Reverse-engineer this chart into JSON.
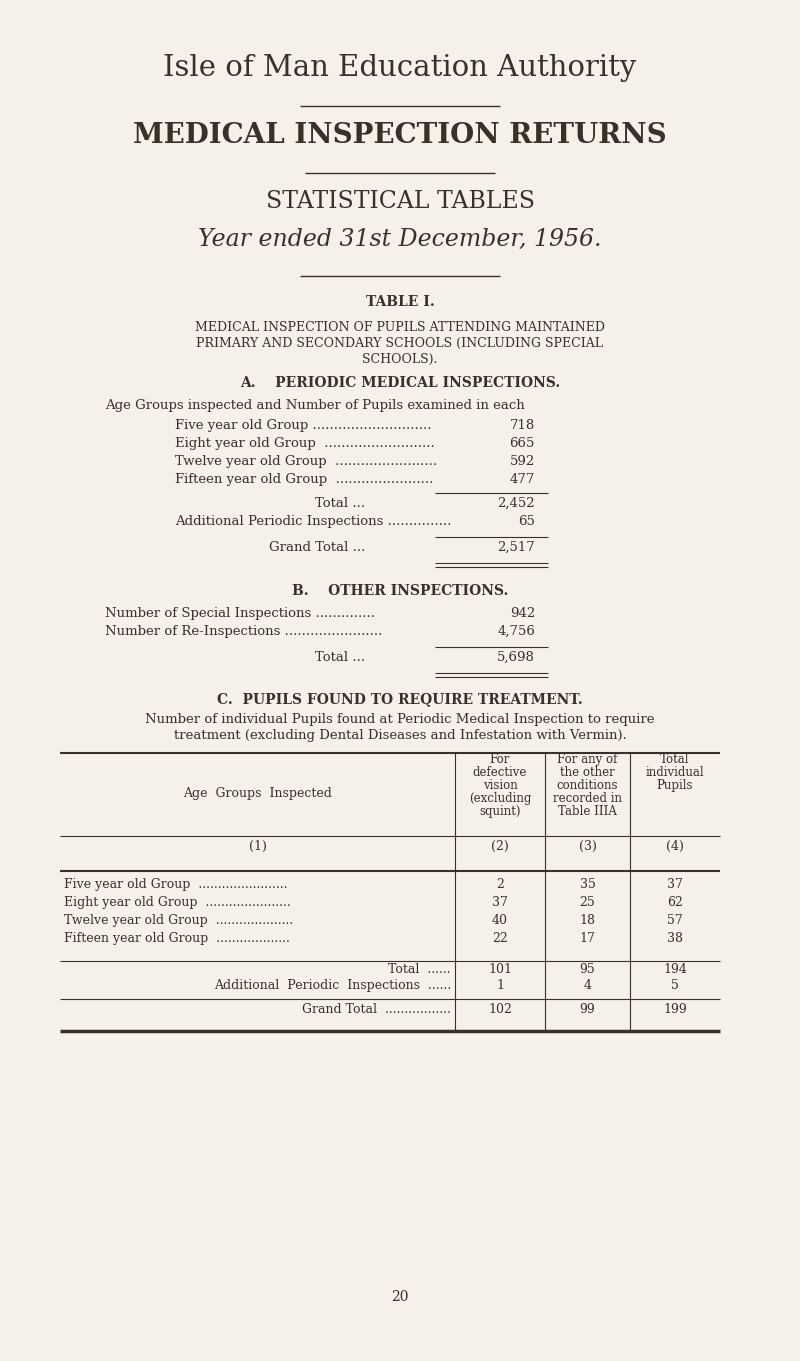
{
  "bg_color": "#f5f0e8",
  "text_color": "#3a3028",
  "title1": "Isle of Man Education Authority",
  "title2": "MEDICAL INSPECTION RETURNS",
  "title3": "STATISTICAL TABLES",
  "title4": "Year ended 31st December, 1956.",
  "table_label": "TABLE I.",
  "section_a_title": "A.    PERIODIC MEDICAL INSPECTIONS.",
  "section_a_intro": "Age Groups inspected and Number of Pupils examined in each",
  "age_groups_a": [
    [
      "Five year old Group ............................",
      "718"
    ],
    [
      "Eight year old Group  ..........................",
      "665"
    ],
    [
      "Twelve year old Group  ........................",
      "592"
    ],
    [
      "Fifteen year old Group  .......................",
      "477"
    ]
  ],
  "total_a_label": "Total ...",
  "total_a_val": "2,452",
  "additional_a_label": "Additional Periodic Inspections ...............",
  "additional_a_val": "65",
  "grand_total_a_label": "Grand Total ...",
  "grand_total_a_val": "2,517",
  "section_b_title": "B.    OTHER INSPECTIONS.",
  "special_insp_label": "Number of Special Inspections ..............",
  "special_insp_val": "942",
  "re_insp_label": "Number of Re-Inspections .......................",
  "re_insp_val": "4,756",
  "total_b_label": "Total ...",
  "total_b_val": "5,698",
  "section_c_title": "C.  PUPILS FOUND TO REQUIRE TREATMENT.",
  "section_c_desc1": "Number of individual Pupils found at Periodic Medical Inspection to require",
  "section_c_desc2": "treatment (excluding Dental Diseases and Infestation with Vermin).",
  "col1_header": "Age  Groups  Inspected",
  "col2_header": [
    "For",
    "defective",
    "vision",
    "(excluding",
    "squint)"
  ],
  "col3_header": [
    "For any of",
    "the other",
    "conditions",
    "recorded in",
    "Table IIIA"
  ],
  "col4_header": [
    "Total",
    "individual",
    "Pupils"
  ],
  "col_nums": [
    "(1)",
    "(2)",
    "(3)",
    "(4)"
  ],
  "table_rows": [
    [
      "Five year old Group  .......................",
      "2",
      "35",
      "37"
    ],
    [
      "Eight year old Group  ......................",
      "37",
      "25",
      "62"
    ],
    [
      "Twelve year old Group  ....................",
      "40",
      "18",
      "57"
    ],
    [
      "Fifteen year old Group  ...................",
      "22",
      "17",
      "38"
    ]
  ],
  "table_total": [
    "Total  ......",
    "101",
    "95",
    "194"
  ],
  "table_additional": [
    "Additional  Periodic  Inspections  ......",
    "1",
    "4",
    "5"
  ],
  "table_grand": [
    "Grand Total  .................",
    "102",
    "99",
    "199"
  ],
  "page_number": "20"
}
